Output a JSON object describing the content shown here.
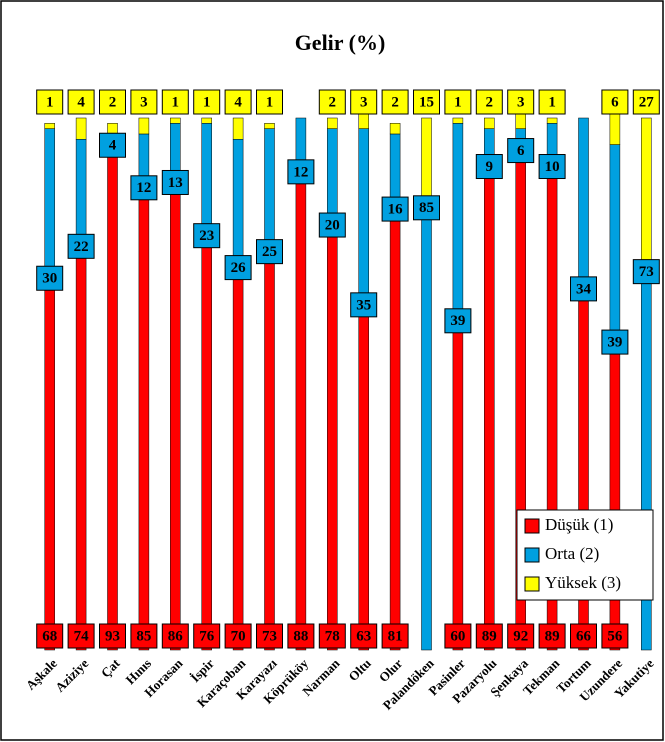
{
  "chart_data": {
    "type": "stacked_bar",
    "title": "Gelir (%)",
    "categories": [
      "Aşkale",
      "Aziziye",
      "Çat",
      "Hınıs",
      "Horasan",
      "İspir",
      "Karaçoban",
      "Karayazı",
      "Köprüköy",
      "Narman",
      "Oltu",
      "Olur",
      "Palandöken",
      "Pasinler",
      "Pazaryolu",
      "Şenkaya",
      "Tekman",
      "Tortum",
      "Uzundere",
      "Yakutiye"
    ],
    "series": [
      {
        "name": "Düşük (1)",
        "color": "#ff0000",
        "values": [
          68,
          74,
          93,
          85,
          86,
          76,
          70,
          73,
          88,
          78,
          63,
          81,
          null,
          60,
          89,
          92,
          89,
          66,
          56,
          null
        ]
      },
      {
        "name": "Orta (2)",
        "color": "#00a0e0",
        "values": [
          30,
          22,
          4,
          12,
          13,
          23,
          26,
          25,
          12,
          20,
          35,
          16,
          85,
          39,
          9,
          6,
          10,
          34,
          39,
          73
        ]
      },
      {
        "name": "Yüksek (3)",
        "color": "#ffff00",
        "values": [
          1,
          4,
          2,
          3,
          1,
          1,
          4,
          1,
          null,
          2,
          3,
          2,
          15,
          1,
          2,
          3,
          1,
          null,
          6,
          27
        ]
      }
    ],
    "ylim": [
      0,
      100
    ],
    "legend": "lower right"
  }
}
